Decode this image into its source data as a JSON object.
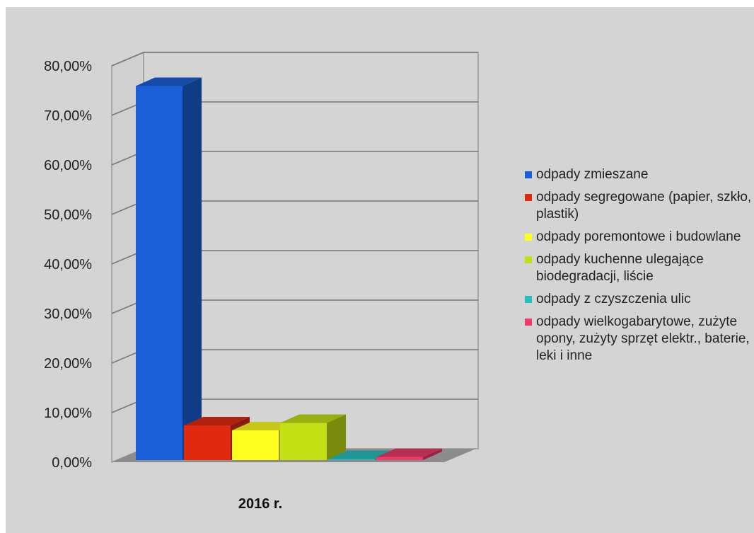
{
  "chart_data": {
    "type": "bar",
    "categories": [
      "2016 r."
    ],
    "ylim": [
      0,
      80
    ],
    "yticks": [
      "0,00%",
      "10,00%",
      "20,00%",
      "30,00%",
      "40,00%",
      "50,00%",
      "60,00%",
      "70,00%",
      "80,00%"
    ],
    "grid": true,
    "legend_position": "right",
    "series": [
      {
        "name": "odpady zmieszane",
        "values": [
          75.5
        ],
        "color": "#1a5fd8"
      },
      {
        "name": "odpady segregowane (papier, szkło, plastik)",
        "values": [
          7.0
        ],
        "color": "#e02a10"
      },
      {
        "name": "odpady poremontowe i budowlane",
        "values": [
          6.0
        ],
        "color": "#ffff20"
      },
      {
        "name": "odpady kuchenne ulegające biodegradacji, liście",
        "values": [
          7.5
        ],
        "color": "#c2e014"
      },
      {
        "name": "odpady z czyszczenia ulic",
        "values": [
          0.2
        ],
        "color": "#27c0c0"
      },
      {
        "name": "odpady wielkogabarytowe, zużyte opony, zużyty sprzęt elektr., baterie, leki i inne",
        "values": [
          0.6
        ],
        "color": "#ef3a6a"
      }
    ]
  }
}
